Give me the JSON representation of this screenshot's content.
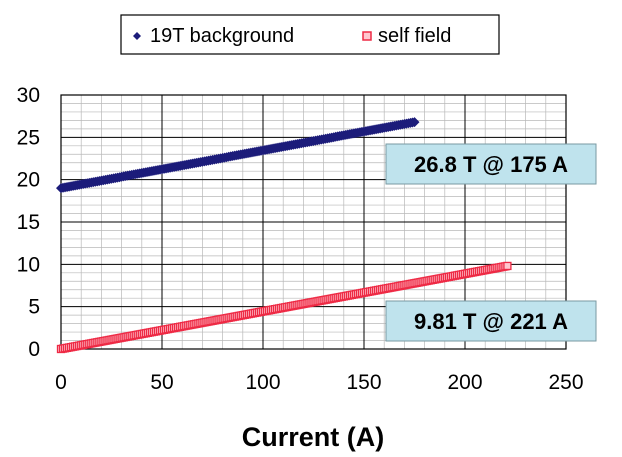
{
  "chart_data": {
    "type": "scatter",
    "xlabel": "Current (A)",
    "ylabel": "",
    "xlim": [
      0,
      250
    ],
    "ylim": [
      0,
      30
    ],
    "x_ticks": [
      "0",
      "50",
      "100",
      "150",
      "200",
      "250"
    ],
    "y_ticks": [
      "0",
      "5",
      "10",
      "15",
      "20",
      "25",
      "30"
    ],
    "grid": true,
    "legend_position": "top",
    "series": [
      {
        "name": "19T background",
        "color": "#1c1c7a",
        "marker": "diamond",
        "x_start": 0,
        "x_end": 175,
        "x_step": 1,
        "y_start": 19.0,
        "y_end": 26.8
      },
      {
        "name": "self field",
        "color": "#ee2a45",
        "marker": "square",
        "x_start": 0,
        "x_end": 221,
        "x_step": 1,
        "y_start": 0.0,
        "y_end": 9.81
      }
    ],
    "annotations": [
      {
        "text": "26.8 T @ 175 A",
        "fill": "#bfe3ed"
      },
      {
        "text": "9.81 T @ 221 A",
        "fill": "#bfe3ed"
      }
    ]
  }
}
